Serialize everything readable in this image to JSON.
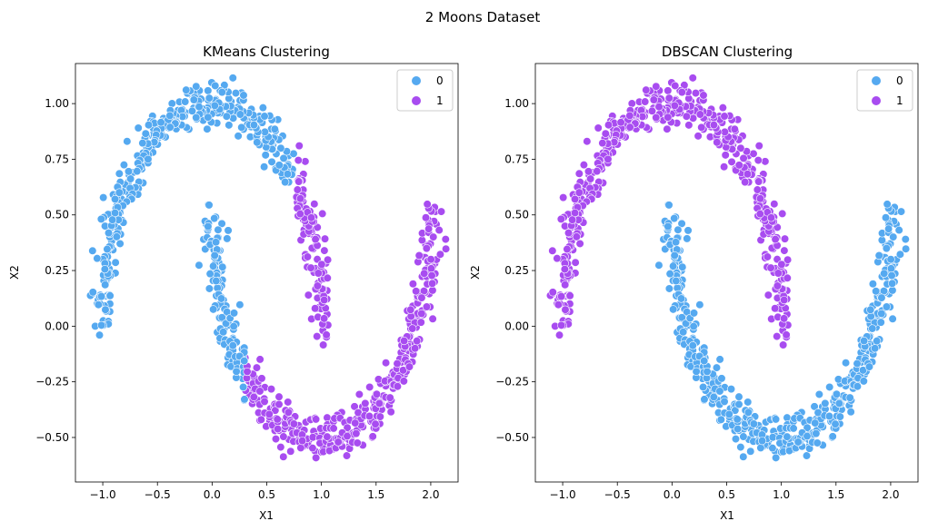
{
  "figure": {
    "suptitle": "2 Moons Dataset"
  },
  "colors": {
    "class_0": "#55a9f0",
    "class_1": "#a84cf0",
    "marker_edge": "#ffffff"
  },
  "chart_data": [
    {
      "type": "scatter",
      "title": "KMeans Clustering",
      "xlabel": "X1",
      "ylabel": "X2",
      "xlim": [
        -1.25,
        2.25
      ],
      "ylim": [
        -0.7,
        1.18
      ],
      "xticks": [
        "−1.0",
        "−0.5",
        "0.0",
        "0.5",
        "1.0",
        "1.5",
        "2.0"
      ],
      "xtick_values": [
        -1.0,
        -0.5,
        0.0,
        0.5,
        1.0,
        1.5,
        2.0
      ],
      "yticks": [
        "−0.50",
        "−0.25",
        "0.00",
        "0.25",
        "0.50",
        "0.75",
        "1.00"
      ],
      "ytick_values": [
        -0.5,
        -0.25,
        0.0,
        0.25,
        0.5,
        0.75,
        1.0
      ],
      "grid": false,
      "legend_position": "top-right",
      "legend": [
        "0",
        "1"
      ],
      "dataset": "two-moons, n=1000, noise=0.05",
      "rule": "class 0 = upper moon where x < 0.75 plus lower moon where x < 0.3; class 1 = remainder",
      "series": [
        {
          "name": "0",
          "color": "#55a9f0"
        },
        {
          "name": "1",
          "color": "#a84cf0"
        }
      ]
    },
    {
      "type": "scatter",
      "title": "DBSCAN Clustering",
      "xlabel": "X1",
      "ylabel": "X2",
      "xlim": [
        -1.25,
        2.25
      ],
      "ylim": [
        -0.7,
        1.18
      ],
      "xticks": [
        "−1.0",
        "−0.5",
        "0.0",
        "0.5",
        "1.0",
        "1.5",
        "2.0"
      ],
      "xtick_values": [
        -1.0,
        -0.5,
        0.0,
        0.5,
        1.0,
        1.5,
        2.0
      ],
      "yticks": [
        "−0.50",
        "−0.25",
        "0.00",
        "0.25",
        "0.50",
        "0.75",
        "1.00"
      ],
      "ytick_values": [
        -0.5,
        -0.25,
        0.0,
        0.25,
        0.5,
        0.75,
        1.0
      ],
      "grid": false,
      "legend_position": "top-right",
      "legend": [
        "0",
        "1"
      ],
      "dataset": "two-moons, n=1000, noise=0.05",
      "rule": "class 1 = entire upper moon; class 0 = entire lower moon",
      "series": [
        {
          "name": "0",
          "color": "#55a9f0"
        },
        {
          "name": "1",
          "color": "#a84cf0"
        }
      ]
    }
  ]
}
